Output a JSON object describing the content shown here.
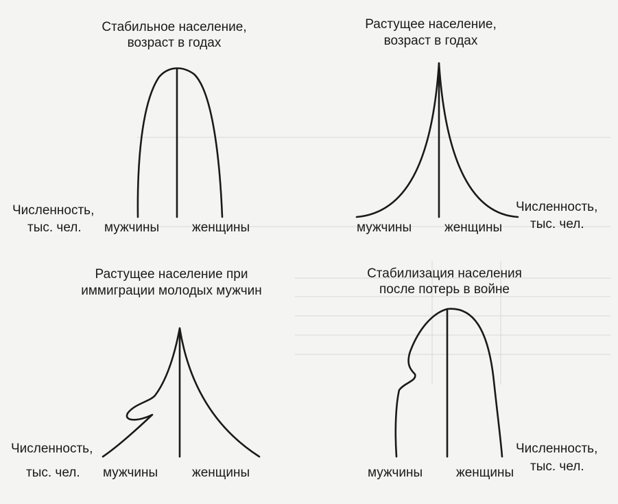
{
  "colors": {
    "ink": "#1a1a1a",
    "paper": "#f4f4f2",
    "bleed": "#c9c9c6"
  },
  "panels": [
    {
      "title1": "Стабильное население,",
      "title2": "возраст в годах",
      "left_label1": "Численность,",
      "left_label2": "тыс. чел.",
      "right_label1": "",
      "right_label2": "",
      "men": "мужчины",
      "women": "женщины"
    },
    {
      "title1": "Растущее население,",
      "title2": "возраст в годах",
      "left_label1": "",
      "left_label2": "",
      "right_label1": "Численность,",
      "right_label2": "тыс. чел.",
      "men": "мужчины",
      "women": "женщины"
    },
    {
      "title1": "Растущее население при",
      "title2": "иммиграции молодых мужчин",
      "left_label1": "Численность,",
      "left_label2": "тыс. чел.",
      "right_label1": "",
      "right_label2": "",
      "men": "мужчины",
      "women": "женщины"
    },
    {
      "title1": "Стабилизация населения",
      "title2": "после потерь в войне",
      "left_label1": "",
      "left_label2": "",
      "right_label1": "Численность,",
      "right_label2": "тыс. чел.",
      "men": "мужчины",
      "women": "женщины"
    }
  ]
}
